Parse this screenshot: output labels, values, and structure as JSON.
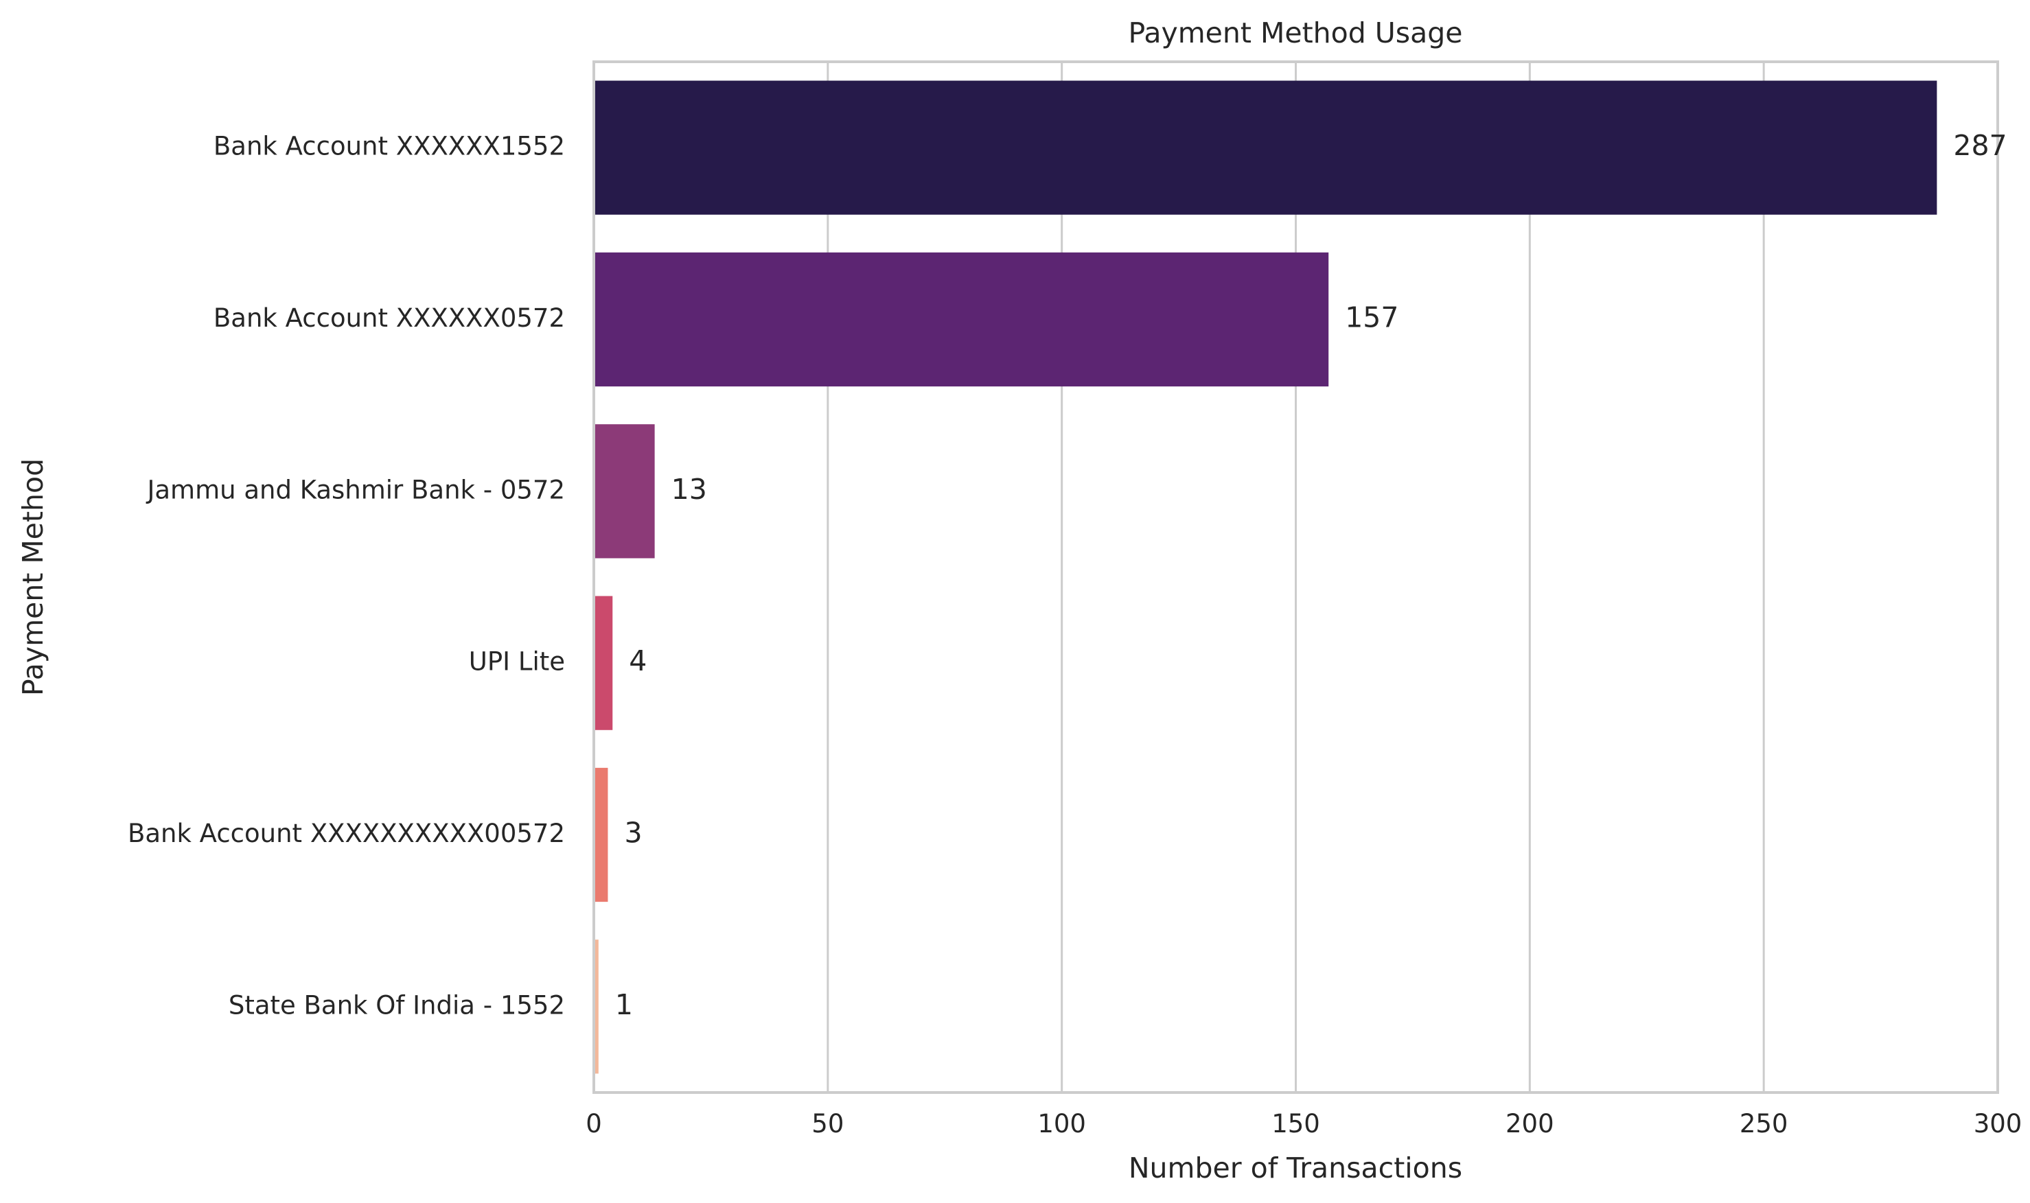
{
  "chart_data": {
    "type": "bar",
    "orientation": "horizontal",
    "title": "Payment Method Usage",
    "xlabel": "Number of Transactions",
    "ylabel": "Payment Method",
    "xlim": [
      0,
      300
    ],
    "xticks": [
      0,
      50,
      100,
      150,
      200,
      250,
      300
    ],
    "grid": "vertical",
    "categories": [
      "Bank Account XXXXXX1552",
      "Bank Account XXXXXX0572",
      "Jammu and Kashmir Bank - 0572",
      "UPI Lite",
      "Bank Account XXXXXXXXXX00572",
      "State Bank Of India - 1552"
    ],
    "values": [
      287,
      157,
      13,
      4,
      3,
      1
    ],
    "colors": [
      "#261a4a",
      "#5c2572",
      "#8c3a78",
      "#cb4a6c",
      "#ea7a6e",
      "#f3b89a"
    ],
    "data_labels": [
      "287",
      "157",
      "13",
      "4",
      "3",
      "1"
    ]
  }
}
